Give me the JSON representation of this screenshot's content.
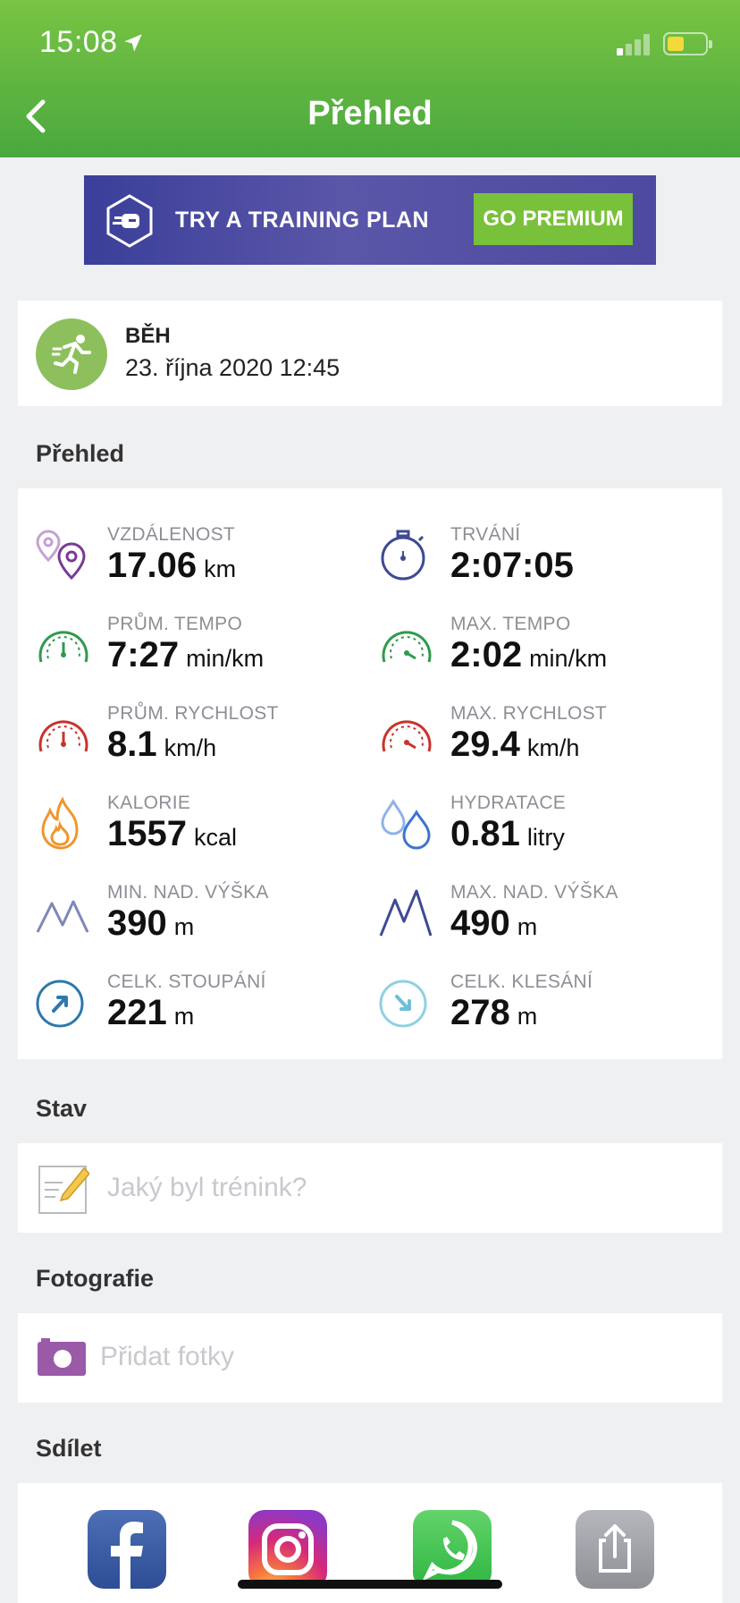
{
  "status_bar": {
    "time": "15:08"
  },
  "nav": {
    "title": "Přehled"
  },
  "promo": {
    "text": "TRY A TRAINING PLAN",
    "button": "GO PREMIUM"
  },
  "activity": {
    "type": "BĚH",
    "date": "23. října 2020 12:45"
  },
  "sections": {
    "overview": "Přehled",
    "status": "Stav",
    "photos": "Fotografie",
    "share": "Sdílet"
  },
  "stats": [
    {
      "label": "VZDÁLENOST",
      "value": "17.06",
      "unit": "km",
      "icon": "location-pins-icon"
    },
    {
      "label": "TRVÁNÍ",
      "value": "2:07:05",
      "unit": "",
      "icon": "stopwatch-icon"
    },
    {
      "label": "PRŮM. TEMPO",
      "value": "7:27",
      "unit": "min/km",
      "icon": "speedometer-icon"
    },
    {
      "label": "MAX. TEMPO",
      "value": "2:02",
      "unit": "min/km",
      "icon": "speedometer-icon"
    },
    {
      "label": "PRŮM. RYCHLOST",
      "value": "8.1",
      "unit": "km/h",
      "icon": "speedometer-icon"
    },
    {
      "label": "MAX. RYCHLOST",
      "value": "29.4",
      "unit": "km/h",
      "icon": "speedometer-icon"
    },
    {
      "label": "KALORIE",
      "value": "1557",
      "unit": "kcal",
      "icon": "flame-icon"
    },
    {
      "label": "HYDRATACE",
      "value": "0.81",
      "unit": "litry",
      "icon": "water-drops-icon"
    },
    {
      "label": "MIN. NAD. VÝŠKA",
      "value": "390",
      "unit": "m",
      "icon": "mountain-icon"
    },
    {
      "label": "MAX. NAD. VÝŠKA",
      "value": "490",
      "unit": "m",
      "icon": "mountain-icon"
    },
    {
      "label": "CELK. STOUPÁNÍ",
      "value": "221",
      "unit": "m",
      "icon": "ascent-arrow-icon"
    },
    {
      "label": "CELK. KLESÁNÍ",
      "value": "278",
      "unit": "m",
      "icon": "descent-arrow-icon"
    }
  ],
  "status_entry": {
    "placeholder": "Jaký byl trénink?"
  },
  "photos": {
    "add_label": "Přidat fotky"
  },
  "share": [
    "facebook",
    "instagram",
    "whatsapp",
    "share"
  ],
  "colors": {
    "header_green": "#5bb33f",
    "promo_purple": "#3f4299",
    "premium_green": "#79c13a",
    "activity_green": "#8dc05d",
    "pace_green": "#2f9a4c",
    "speed_red": "#c9332b",
    "calorie_orange": "#f0962c",
    "water_blue": "#5d8fd8",
    "mountain_navy": "#3f4a93"
  }
}
